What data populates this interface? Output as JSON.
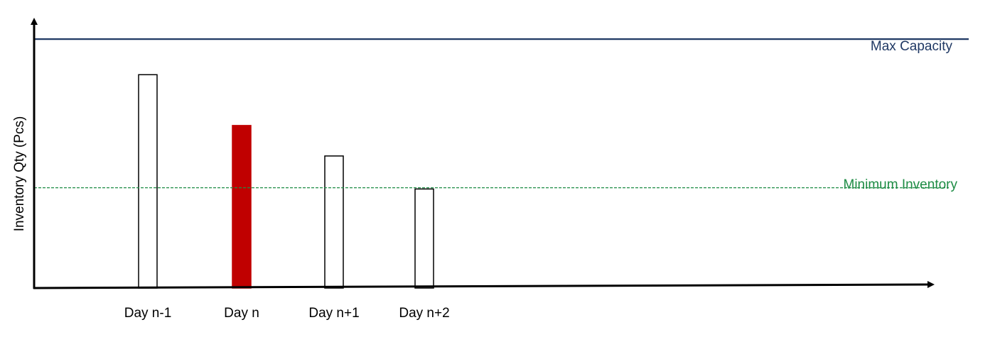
{
  "chart_data": {
    "type": "bar",
    "title": "",
    "xlabel": "",
    "ylabel": "Inventory Qty (Pcs)",
    "categories": [
      "Day n-1",
      "Day n",
      "Day n+1",
      "Day n+2"
    ],
    "values": [
      84,
      64,
      52,
      39
    ],
    "highlight_category": "Day n",
    "ylim": [
      0,
      100
    ],
    "grid": false,
    "legend": "none",
    "reference_lines": [
      {
        "name": "Max Capacity",
        "value": 98,
        "style": "solid",
        "color": "#1f3864"
      },
      {
        "name": "Minimum Inventory",
        "value": 39.5,
        "style": "dashed",
        "color": "#1e8c45"
      }
    ],
    "colors": {
      "highlight_fill": "#c00000",
      "bar_fill": "#ffffff",
      "bar_stroke": "#000000",
      "axis": "#000000"
    }
  }
}
